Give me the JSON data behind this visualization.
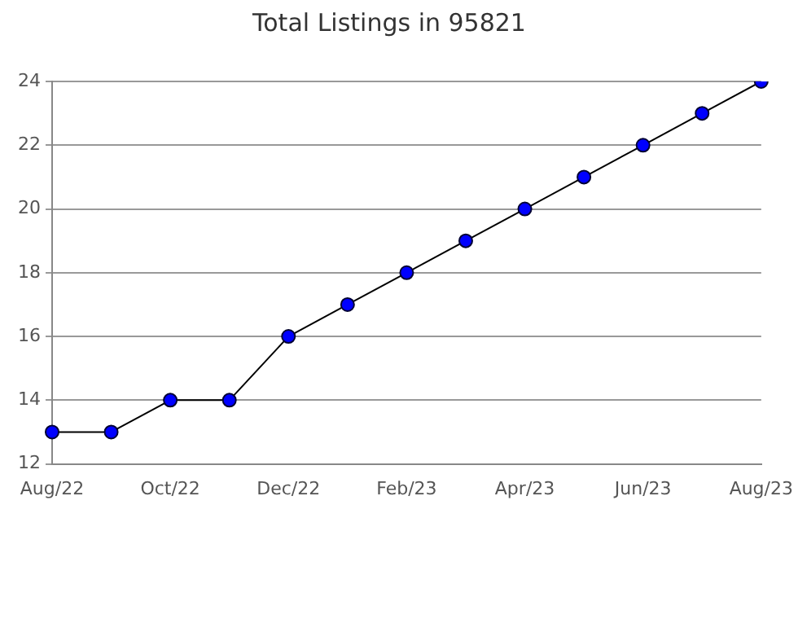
{
  "chart_data": {
    "type": "line",
    "title": "Total Listings in 95821",
    "categories": [
      "Aug/22",
      null,
      "Oct/22",
      null,
      "Dec/22",
      null,
      "Feb/23",
      null,
      "Apr/23",
      null,
      "Jun/23",
      null,
      "Aug/23"
    ],
    "series": [
      {
        "color": "#0000ff",
        "values": [
          13,
          13,
          14,
          14,
          16,
          17,
          18,
          19,
          20,
          21,
          22,
          23,
          24
        ]
      }
    ],
    "ylim": [
      12,
      24
    ],
    "yticks": [
      12,
      14,
      16,
      18,
      20,
      22,
      24
    ],
    "grid": "y",
    "legend": false,
    "marker": "circle",
    "line_style": "solid"
  }
}
